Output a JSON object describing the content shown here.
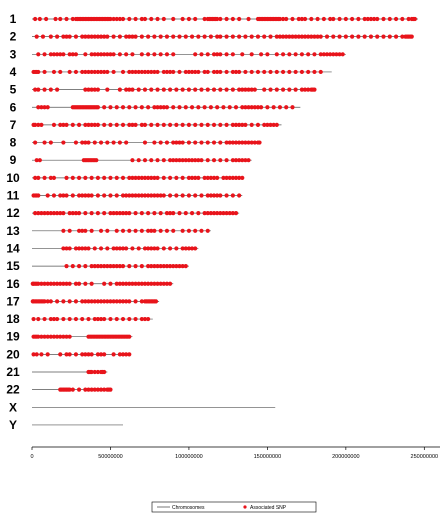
{
  "chart_data": {
    "type": "scatter",
    "description_free": true,
    "x_ticks": [
      0,
      50000000,
      100000000,
      150000000,
      200000000,
      250000000
    ],
    "x_tick_labels": [
      "0",
      "50000000",
      "100000000",
      "150000000",
      "200000000",
      "250000000"
    ],
    "xlim": [
      0,
      260000000
    ],
    "legend": {
      "placement": "bottom-center",
      "line_label": "Chromosomes",
      "marker_label": "Associated SNP"
    },
    "colors": {
      "line": "#555555",
      "marker": "#e8141b",
      "axis": "#000000"
    },
    "chromosomes": [
      {
        "name": "1",
        "length": 246000000,
        "snps": [
          2,
          5,
          9,
          15,
          18,
          22,
          26,
          28,
          29,
          30,
          31,
          32,
          33,
          34,
          35,
          36,
          37,
          38,
          39,
          40,
          41,
          42,
          43,
          44,
          45,
          46,
          47,
          48,
          49,
          50,
          52,
          54,
          56,
          58,
          62,
          66,
          70,
          72,
          76,
          80,
          84,
          90,
          96,
          100,
          104,
          110,
          112,
          113,
          114,
          115,
          116,
          117,
          118,
          120,
          124,
          128,
          132,
          138,
          144,
          145,
          146,
          147,
          148,
          149,
          150,
          151,
          152,
          153,
          154,
          155,
          156,
          157,
          158,
          160,
          162,
          166,
          170,
          172,
          174,
          178,
          182,
          186,
          190,
          192,
          196,
          200,
          204,
          208,
          212,
          214,
          216,
          218,
          220,
          224,
          228,
          232,
          236,
          240,
          242,
          243,
          244
        ]
      },
      {
        "name": "2",
        "length": 243000000,
        "snps": [
          3,
          7,
          12,
          16,
          20,
          22,
          24,
          28,
          32,
          34,
          36,
          38,
          40,
          42,
          44,
          46,
          48,
          52,
          56,
          60,
          62,
          64,
          66,
          70,
          74,
          78,
          82,
          86,
          90,
          94,
          98,
          102,
          106,
          110,
          114,
          118,
          120,
          124,
          128,
          132,
          136,
          140,
          144,
          148,
          152,
          156,
          158,
          160,
          162,
          164,
          166,
          168,
          170,
          172,
          174,
          176,
          178,
          180,
          182,
          184,
          188,
          192,
          196,
          200,
          204,
          208,
          212,
          216,
          220,
          224,
          228,
          232,
          236,
          238,
          239,
          240,
          241,
          242
        ]
      },
      {
        "name": "3",
        "length": 200000000,
        "snps": [
          4,
          8,
          12,
          14,
          16,
          18,
          20,
          24,
          26,
          28,
          34,
          38,
          40,
          42,
          44,
          46,
          48,
          50,
          52,
          56,
          60,
          64,
          70,
          74,
          78,
          82,
          86,
          90,
          104,
          108,
          112,
          116,
          118,
          120,
          124,
          128,
          134,
          140,
          146,
          150,
          156,
          160,
          164,
          168,
          172,
          176,
          180,
          184,
          186,
          188,
          190,
          192,
          194,
          196,
          198
        ]
      },
      {
        "name": "4",
        "length": 191000000,
        "snps": [
          1,
          2,
          3,
          4,
          8,
          14,
          18,
          24,
          28,
          32,
          34,
          36,
          38,
          40,
          42,
          44,
          46,
          48,
          52,
          58,
          62,
          64,
          66,
          68,
          70,
          72,
          74,
          76,
          78,
          80,
          84,
          86,
          88,
          90,
          94,
          98,
          100,
          102,
          104,
          106,
          110,
          112,
          116,
          118,
          120,
          124,
          128,
          130,
          132,
          136,
          140,
          144,
          148,
          152,
          156,
          160,
          164,
          168,
          172,
          176,
          180,
          184
        ]
      },
      {
        "name": "5",
        "length": 181000000,
        "snps": [
          2,
          4,
          8,
          12,
          16,
          34,
          36,
          38,
          40,
          42,
          48,
          56,
          60,
          62,
          64,
          68,
          72,
          76,
          80,
          84,
          88,
          92,
          96,
          100,
          104,
          108,
          112,
          116,
          120,
          124,
          128,
          132,
          134,
          136,
          138,
          140,
          142,
          148,
          152,
          156,
          160,
          164,
          168,
          172,
          174,
          176,
          178,
          179,
          180
        ]
      },
      {
        "name": "6",
        "length": 171000000,
        "snps": [
          4,
          6,
          8,
          10,
          26,
          27,
          28,
          29,
          30,
          31,
          32,
          33,
          34,
          35,
          36,
          37,
          38,
          39,
          40,
          41,
          42,
          46,
          50,
          54,
          58,
          62,
          66,
          70,
          74,
          78,
          80,
          82,
          84,
          86,
          90,
          94,
          98,
          102,
          106,
          110,
          114,
          118,
          122,
          126,
          130,
          134,
          136,
          138,
          140,
          142,
          144,
          146,
          150,
          154,
          158,
          162,
          166
        ]
      },
      {
        "name": "7",
        "length": 159000000,
        "snps": [
          1,
          2,
          4,
          6,
          14,
          18,
          20,
          22,
          26,
          30,
          34,
          36,
          38,
          40,
          42,
          46,
          50,
          54,
          58,
          62,
          64,
          66,
          70,
          72,
          76,
          80,
          84,
          88,
          92,
          96,
          100,
          104,
          108,
          112,
          116,
          120,
          124,
          128,
          130,
          132,
          134,
          136,
          140,
          144,
          148,
          150,
          152,
          154,
          156
        ]
      },
      {
        "name": "8",
        "length": 146000000,
        "snps": [
          2,
          8,
          12,
          20,
          28,
          32,
          34,
          36,
          40,
          44,
          48,
          52,
          56,
          60,
          72,
          78,
          82,
          86,
          90,
          92,
          94,
          96,
          100,
          104,
          108,
          112,
          116,
          120,
          124,
          126,
          128,
          130,
          132,
          134,
          136,
          138,
          140,
          142,
          144,
          145
        ]
      },
      {
        "name": "9",
        "length": 140000000,
        "snps": [
          3,
          5,
          33,
          34,
          35,
          36,
          37,
          38,
          39,
          40,
          41,
          64,
          68,
          72,
          76,
          80,
          84,
          88,
          90,
          92,
          94,
          96,
          98,
          100,
          102,
          104,
          106,
          108,
          112,
          116,
          120,
          124,
          128,
          130,
          132,
          134,
          136,
          138
        ]
      },
      {
        "name": "10",
        "length": 135000000,
        "snps": [
          2,
          4,
          8,
          12,
          14,
          22,
          26,
          30,
          34,
          38,
          42,
          46,
          50,
          54,
          58,
          62,
          64,
          66,
          68,
          70,
          72,
          74,
          76,
          78,
          80,
          84,
          88,
          92,
          96,
          100,
          102,
          104,
          106,
          110,
          112,
          114,
          116,
          118,
          122,
          124,
          126,
          128,
          130,
          132,
          134
        ]
      },
      {
        "name": "11",
        "length": 134000000,
        "snps": [
          1,
          2,
          3,
          4,
          10,
          14,
          18,
          20,
          22,
          26,
          30,
          32,
          34,
          36,
          38,
          42,
          46,
          50,
          54,
          58,
          60,
          62,
          64,
          66,
          68,
          70,
          72,
          74,
          76,
          78,
          80,
          82,
          84,
          88,
          92,
          96,
          100,
          104,
          108,
          112,
          114,
          116,
          118,
          120,
          124,
          128,
          132
        ]
      },
      {
        "name": "12",
        "length": 132000000,
        "snps": [
          2,
          4,
          6,
          8,
          10,
          12,
          14,
          16,
          18,
          20,
          24,
          26,
          28,
          30,
          34,
          38,
          42,
          46,
          50,
          52,
          54,
          56,
          58,
          60,
          62,
          66,
          70,
          74,
          78,
          82,
          86,
          88,
          90,
          94,
          98,
          102,
          106,
          110,
          112,
          114,
          116,
          118,
          120,
          122,
          124,
          126,
          128,
          130
        ]
      },
      {
        "name": "13",
        "length": 114000000,
        "snps": [
          20,
          24,
          30,
          32,
          34,
          38,
          44,
          48,
          54,
          58,
          62,
          66,
          70,
          74,
          76,
          78,
          82,
          86,
          90,
          96,
          100,
          104,
          108,
          112
        ]
      },
      {
        "name": "14",
        "length": 106000000,
        "snps": [
          20,
          22,
          24,
          28,
          30,
          32,
          34,
          36,
          40,
          44,
          48,
          52,
          54,
          56,
          58,
          60,
          64,
          68,
          72,
          74,
          76,
          78,
          80,
          84,
          88,
          92,
          96,
          98,
          100,
          102,
          104
        ]
      },
      {
        "name": "15",
        "length": 100000000,
        "snps": [
          22,
          26,
          30,
          34,
          38,
          40,
          42,
          44,
          46,
          48,
          50,
          52,
          54,
          56,
          58,
          62,
          66,
          70,
          74,
          76,
          78,
          80,
          82,
          84,
          86,
          88,
          90,
          92,
          94,
          96,
          98
        ]
      },
      {
        "name": "16",
        "length": 90000000,
        "snps": [
          0.5,
          1,
          2,
          3,
          4,
          6,
          8,
          10,
          12,
          14,
          16,
          18,
          20,
          22,
          24,
          28,
          30,
          34,
          38,
          46,
          50,
          54,
          56,
          58,
          60,
          62,
          64,
          66,
          68,
          70,
          72,
          74,
          76,
          78,
          80,
          82,
          84,
          86,
          88
        ]
      },
      {
        "name": "17",
        "length": 81000000,
        "snps": [
          0.5,
          1,
          2,
          3,
          4,
          5,
          6,
          7,
          8,
          10,
          12,
          16,
          20,
          24,
          28,
          32,
          34,
          36,
          38,
          40,
          42,
          44,
          46,
          48,
          50,
          52,
          54,
          56,
          58,
          60,
          62,
          66,
          70,
          72,
          73,
          74,
          75,
          76,
          77,
          78,
          79
        ]
      },
      {
        "name": "18",
        "length": 77000000,
        "snps": [
          1,
          4,
          8,
          12,
          14,
          16,
          20,
          24,
          28,
          32,
          36,
          40,
          42,
          44,
          46,
          50,
          54,
          58,
          62,
          66,
          70,
          72,
          74
        ]
      },
      {
        "name": "19",
        "length": 64000000,
        "snps": [
          1,
          2,
          3,
          4,
          6,
          8,
          10,
          12,
          14,
          16,
          18,
          20,
          22,
          24,
          36,
          37,
          38,
          39,
          40,
          41,
          42,
          43,
          44,
          45,
          46,
          47,
          48,
          49,
          50,
          51,
          52,
          53,
          54,
          55,
          56,
          57,
          58,
          59,
          60,
          61,
          62
        ]
      },
      {
        "name": "20",
        "length": 63000000,
        "snps": [
          1,
          3,
          6,
          10,
          18,
          22,
          24,
          28,
          32,
          34,
          36,
          38,
          42,
          44,
          46,
          52,
          56,
          58,
          60,
          62
        ]
      },
      {
        "name": "21",
        "length": 48000000,
        "snps": [
          36,
          37,
          38,
          40,
          42,
          44,
          45,
          46
        ]
      },
      {
        "name": "22",
        "length": 51000000,
        "snps": [
          18,
          19,
          20,
          21,
          22,
          23,
          24,
          26,
          30,
          34,
          36,
          38,
          40,
          42,
          44,
          46,
          48,
          49,
          50
        ]
      },
      {
        "name": "X",
        "length": 155000000,
        "snps": []
      },
      {
        "name": "Y",
        "length": 58000000,
        "snps": []
      }
    ],
    "snp_unit_scale": 1000000
  }
}
